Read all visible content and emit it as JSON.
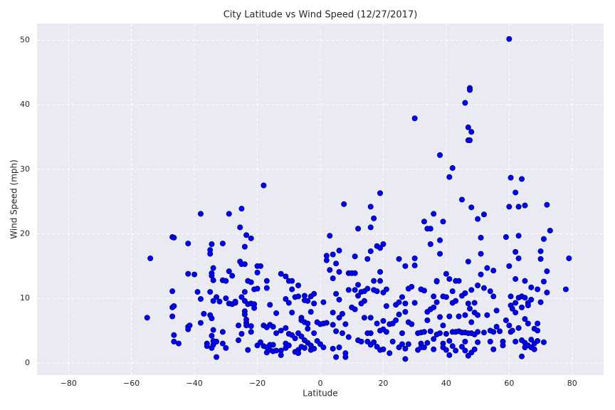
{
  "chart_data": {
    "type": "scatter",
    "title": "City Latitude vs Wind Speed (12/27/2017)",
    "x_label": "Latitude",
    "y_label": "Wind Speed (mph)",
    "xlim": [
      -90,
      90
    ],
    "ylim": [
      -1.9,
      52.6
    ],
    "xticks": [
      {
        "value": -80,
        "label": "−80"
      },
      {
        "value": -60,
        "label": "−60"
      },
      {
        "value": -40,
        "label": "−40"
      },
      {
        "value": -20,
        "label": "−20"
      },
      0,
      20,
      40,
      60,
      80
    ],
    "yticks": [
      0,
      10,
      20,
      30,
      40,
      50
    ],
    "grid": true,
    "series": [
      {
        "color": "#0000ff",
        "x": [
          -55,
          -54,
          -47,
          -47,
          -47,
          -47,
          -46.5,
          -46.5,
          -46.5,
          -46.5,
          -45,
          -42,
          -42,
          -42,
          -42,
          -41.5,
          -40,
          -39,
          -38,
          -38,
          -38,
          -37,
          -36,
          -36,
          -35,
          -35,
          -35,
          -35,
          -34.5,
          -34.5,
          -34.5,
          -34.5,
          -34.5,
          -34.5,
          -34,
          -34,
          -34,
          -34,
          -34,
          -34,
          -33,
          -33,
          -33,
          -32,
          -31,
          -31,
          -31,
          -31,
          -30,
          -30,
          -30,
          -29,
          -29,
          -29,
          -28,
          -28,
          -27,
          -27,
          -26,
          -26,
          -25.5,
          -25.5,
          -25,
          -25,
          -25,
          -25,
          -24,
          -24,
          -24,
          -24,
          -24,
          -24,
          -23.5,
          -23.5,
          -23.5,
          -23.5,
          -23,
          -23,
          -23,
          -22,
          -22,
          -22,
          -22,
          -22,
          -21,
          -21,
          -21,
          -20,
          -20,
          -20,
          -20,
          -19,
          -19,
          -18,
          -18,
          -18,
          -17,
          -17,
          -17,
          -17,
          -17,
          -16,
          -16,
          -16,
          -16,
          -15,
          -15,
          -15,
          -14,
          -14,
          -14,
          -12.5,
          -12.5,
          -12.5,
          -12.5,
          -11,
          -11,
          -11,
          -11,
          -11,
          -10,
          -10,
          -10,
          -10,
          -9,
          -9,
          -9,
          -9,
          -8,
          -8,
          -8,
          -7,
          -7,
          -7,
          -7,
          -7,
          -6,
          -6,
          -6,
          -6,
          -5,
          -5,
          -5,
          -5,
          -5,
          -4,
          -4,
          -4,
          -4,
          -3,
          -3,
          -3,
          -3,
          -2,
          -2,
          -2,
          -2,
          -1,
          -1,
          0,
          0,
          1,
          1,
          1,
          2,
          2,
          2,
          3,
          3,
          4,
          4,
          4,
          4,
          4,
          5,
          5,
          5,
          5,
          6,
          6,
          6,
          6,
          6,
          7,
          7,
          7.5,
          8,
          8,
          8,
          9,
          9,
          9,
          10,
          10,
          11,
          11,
          11,
          11,
          12,
          12,
          12,
          12,
          13,
          13,
          13,
          14,
          14,
          14,
          15,
          15,
          15,
          15,
          16,
          16,
          16,
          16,
          16,
          16,
          17,
          17,
          17,
          17,
          18,
          18,
          18,
          18,
          19,
          19,
          19,
          19,
          19,
          19,
          20,
          20,
          20,
          20,
          20,
          21,
          21,
          21,
          22,
          22,
          23,
          23,
          24,
          24,
          25,
          25,
          25,
          25,
          26,
          26,
          26,
          27,
          27,
          27,
          27,
          27,
          28,
          28,
          28,
          29,
          29,
          30,
          30,
          30,
          30,
          31,
          31,
          32,
          32,
          32,
          32,
          33,
          33,
          33,
          33,
          34,
          34,
          34,
          34,
          35,
          35,
          35,
          35,
          36,
          36,
          36,
          36,
          36,
          37,
          37,
          37,
          37,
          38,
          38,
          38,
          38,
          38,
          39,
          39,
          39,
          39,
          39,
          40,
          40,
          40,
          40,
          41,
          41,
          41,
          41,
          41,
          42,
          42,
          42,
          42,
          42,
          43,
          43,
          43,
          43,
          44,
          44,
          44,
          45,
          45,
          45,
          45,
          46,
          46,
          46,
          46,
          46,
          46,
          47,
          47,
          47,
          47,
          47,
          47,
          47.5,
          47.5,
          47.5,
          47.5,
          48,
          48,
          48,
          48,
          48,
          48,
          49,
          49,
          49,
          49,
          50,
          50,
          50,
          50,
          50,
          51,
          51,
          51,
          52,
          52,
          52,
          53,
          53,
          54,
          54,
          54,
          55,
          55,
          55,
          55,
          56,
          56,
          57,
          58,
          58,
          59,
          59,
          60,
          60,
          60,
          60,
          60.5,
          60.5,
          60.5,
          60.5,
          61,
          61,
          62,
          62,
          62,
          62,
          62,
          62,
          63,
          63,
          63,
          63,
          63,
          64,
          64,
          64,
          64,
          64,
          65,
          65,
          65,
          65,
          65,
          65,
          66,
          66,
          66,
          66,
          67,
          67,
          67,
          67,
          68,
          68,
          68,
          69,
          69,
          69,
          69,
          70,
          70,
          70,
          71,
          71,
          71,
          72,
          72,
          72,
          73,
          78,
          79
        ],
        "values": [
          7.0,
          16.2,
          19.5,
          11.1,
          8.6,
          7.2,
          19.4,
          8.8,
          3.3,
          4.3,
          3.0,
          13.8,
          5.6,
          5.2,
          18.5,
          5.8,
          13.7,
          11.0,
          23.1,
          6.2,
          9.9,
          7.6,
          3.0,
          2.6,
          7.4,
          17.5,
          16.9,
          11.0,
          18.4,
          13.9,
          13.5,
          6.9,
          4.2,
          2.3,
          14.7,
          12.8,
          9.6,
          5.1,
          2.8,
          3.4,
          10.2,
          3.3,
          0.9,
          9.5,
          12.8,
          18.5,
          4.8,
          3.0,
          12.7,
          10.0,
          2.3,
          14.2,
          9.2,
          23.1,
          13.5,
          9.1,
          9.3,
          9.5,
          5.8,
          3.5,
          21.0,
          15.7,
          23.9,
          15.3,
          10.2,
          4.5,
          18.0,
          15.3,
          9.6,
          8.0,
          7.5,
          11.0,
          19.8,
          6.2,
          6.7,
          5.8,
          12.7,
          2.0,
          9.1,
          19.3,
          12.5,
          9.2,
          5.7,
          4.8,
          11.4,
          9.1,
          8.5,
          15.0,
          14.0,
          11.5,
          2.7,
          15.0,
          3.2,
          27.5,
          5.8,
          2.6,
          12.7,
          11.6,
          5.5,
          2.4,
          1.6,
          9.0,
          5.9,
          2.8,
          2.0,
          5.6,
          2.8,
          1.8,
          7.7,
          1.9,
          4.6,
          13.8,
          5.0,
          1.9,
          1.2,
          13.4,
          9.9,
          5.4,
          3.0,
          2.3,
          12.7,
          9.3,
          4.5,
          2.7,
          12.7,
          11.4,
          7.8,
          4.3,
          10.2,
          3.8,
          1.7,
          10.3,
          4.6,
          2.0,
          1.5,
          12.0,
          7.0,
          4.1,
          6.6,
          2.5,
          10.4,
          9.7,
          6.3,
          3.5,
          2.3,
          9.6,
          6.1,
          3.1,
          5.3,
          10.3,
          7.9,
          2.0,
          2.7,
          10.7,
          9.2,
          4.6,
          2.2,
          6.3,
          3.4,
          6.0,
          2.9,
          9.4,
          6.1,
          2.4,
          16.6,
          15.9,
          6.2,
          19.7,
          14.4,
          16.8,
          13.1,
          7.8,
          5.9,
          2.2,
          15.4,
          10.7,
          4.9,
          0.9,
          17.4,
          14.1,
          9.8,
          7.0,
          2.4,
          7.6,
          4.6,
          24.6,
          6.0,
          1.5,
          0.9,
          13.9,
          11.3,
          4.0,
          8.6,
          13.9,
          16.5,
          13.9,
          11.3,
          8.3,
          20.8,
          12.1,
          10.4,
          3.5,
          11.0,
          9.2,
          3.3,
          11.1,
          9.6,
          7.0,
          16.1,
          11.5,
          4.6,
          3.3,
          24.2,
          21.0,
          17.3,
          7.0,
          4.6,
          2.8,
          22.4,
          12.7,
          11.3,
          3.2,
          18.1,
          11.1,
          6.1,
          2.5,
          26.3,
          17.8,
          14.1,
          12.7,
          5.0,
          2.0,
          18.4,
          10.9,
          6.5,
          5.2,
          2.1,
          11.4,
          8.8,
          4.8,
          6.0,
          1.5,
          6.1,
          3.3,
          9.0,
          6.6,
          16.1,
          7.5,
          9.4,
          2.4,
          10.2,
          4.6,
          2.9,
          15.0,
          9.2,
          0.6,
          7.9,
          2.2,
          11.5,
          6.3,
          2.9,
          11.8,
          6.0,
          37.9,
          16.2,
          15.1,
          9.3,
          4.6,
          2.0,
          11.4,
          4.7,
          3.0,
          2.4,
          21.9,
          11.2,
          4.8,
          2.4,
          20.8,
          7.9,
          6.6,
          3.1,
          20.8,
          18.4,
          8.3,
          4.9,
          23.1,
          10.3,
          8.6,
          2.1,
          3.7,
          12.6,
          12.7,
          9.4,
          4.4,
          32.2,
          19.0,
          16.9,
          7.1,
          4.6,
          21.9,
          10.3,
          5.8,
          3.0,
          2.4,
          13.8,
          10.2,
          4.5,
          2.0,
          28.8,
          13.0,
          7.2,
          3.4,
          1.2,
          30.2,
          11.1,
          9.3,
          4.8,
          2.6,
          12.7,
          9.6,
          4.8,
          1.9,
          12.7,
          7.2,
          4.9,
          25.3,
          10.4,
          4.7,
          2.5,
          40.3,
          10.8,
          7.4,
          4.7,
          3.3,
          1.9,
          36.5,
          34.5,
          15.7,
          9.2,
          4.6,
          1.1,
          42.6,
          42.3,
          34.5,
          8.4,
          35.8,
          24.1,
          11.3,
          6.3,
          4.6,
          1.6,
          9.3,
          7.8,
          4.4,
          2.1,
          22.3,
          12.0,
          7.4,
          4.8,
          3.2,
          19.4,
          16.9,
          13.7,
          23.0,
          11.6,
          4.7,
          14.7,
          7.4,
          11.1,
          5.0,
          3.3,
          14.3,
          10.3,
          4.8,
          2.1,
          8.1,
          5.6,
          4.9,
          3.3,
          2.7,
          19.5,
          6.6,
          50.2,
          24.2,
          15.0,
          5.8,
          28.7,
          10.3,
          8.9,
          4.8,
          8.4,
          5.0,
          26.4,
          17.2,
          13.0,
          9.3,
          7.8,
          3.3,
          19.7,
          16.2,
          24.2,
          10.1,
          5.4,
          28.5,
          10.3,
          8.6,
          3.5,
          1.0,
          24.4,
          12.7,
          10.1,
          6.8,
          3.1,
          2.4,
          9.3,
          8.9,
          6.1,
          2.7,
          11.7,
          9.8,
          3.6,
          2.4,
          5.3,
          3.0,
          2.1,
          11.4,
          6.1,
          5.0,
          3.4,
          17.3,
          16.1,
          9.4,
          19.2,
          12.6,
          3.2,
          24.5,
          14.2,
          10.9,
          20.5,
          11.4,
          16.2
        ]
      }
    ]
  }
}
